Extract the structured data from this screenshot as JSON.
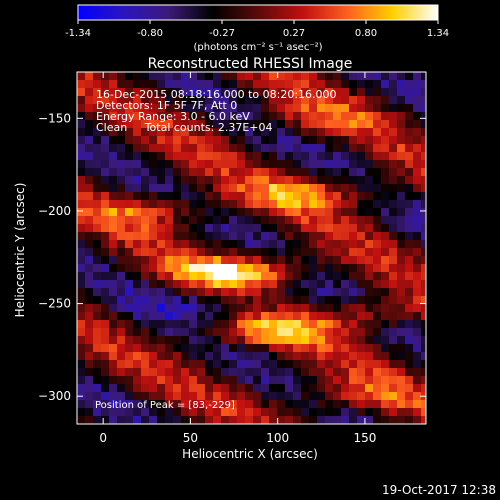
{
  "chart_data": {
    "type": "heatmap",
    "title": "Reconstructed RHESSI Image",
    "xlabel": "Heliocentric X (arcsec)",
    "ylabel": "Heliocentric Y (arcsec)",
    "xlim": [
      -15,
      185
    ],
    "ylim": [
      -315,
      -125
    ],
    "x_ticks": [
      0,
      50,
      100,
      150
    ],
    "y_ticks": [
      -150,
      -200,
      -250,
      -300
    ],
    "colorbar": {
      "min": -1.34,
      "max": 1.34,
      "ticks": [
        "-1.34",
        "-0.80",
        "-0.27",
        "0.27",
        "0.80",
        "1.34"
      ],
      "unit_label": "(photons cm⁻² s⁻¹ asec⁻²)",
      "colors": [
        "#0000ff",
        "#2a14c0",
        "#3c1a7a",
        "#000000",
        "#5a0a0a",
        "#c01010",
        "#ff6020",
        "#ffd000",
        "#ffffff"
      ]
    },
    "annotations": [
      "16-Dec-2015 08:18:16.000 to 08:20:16.000",
      "Detectors: 1F 5F 7F, Att 0",
      "Energy Range: 3.0 - 6.0 keV",
      "Clean     Total counts: 2.37E+04"
    ],
    "peak_label": "Position of Peak = [83,-229]",
    "footer": "19-Oct-2017 12:38",
    "bands": [
      {
        "x_center": 80,
        "y_center": -233,
        "peak": 1.34,
        "note": "brightest lobe"
      },
      {
        "x_center": 90,
        "y_center": -265,
        "peak": 0.95
      },
      {
        "x_center": 150,
        "y_center": -255,
        "peak": 0.75
      },
      {
        "x_center": 120,
        "y_center": -190,
        "peak": 0.8
      },
      {
        "x_center": 30,
        "y_center": -200,
        "peak": 0.7
      },
      {
        "x_center": 120,
        "y_center": -150,
        "peak": 0.5
      },
      {
        "x_center": 140,
        "y_center": -300,
        "peak": 0.55
      }
    ]
  }
}
